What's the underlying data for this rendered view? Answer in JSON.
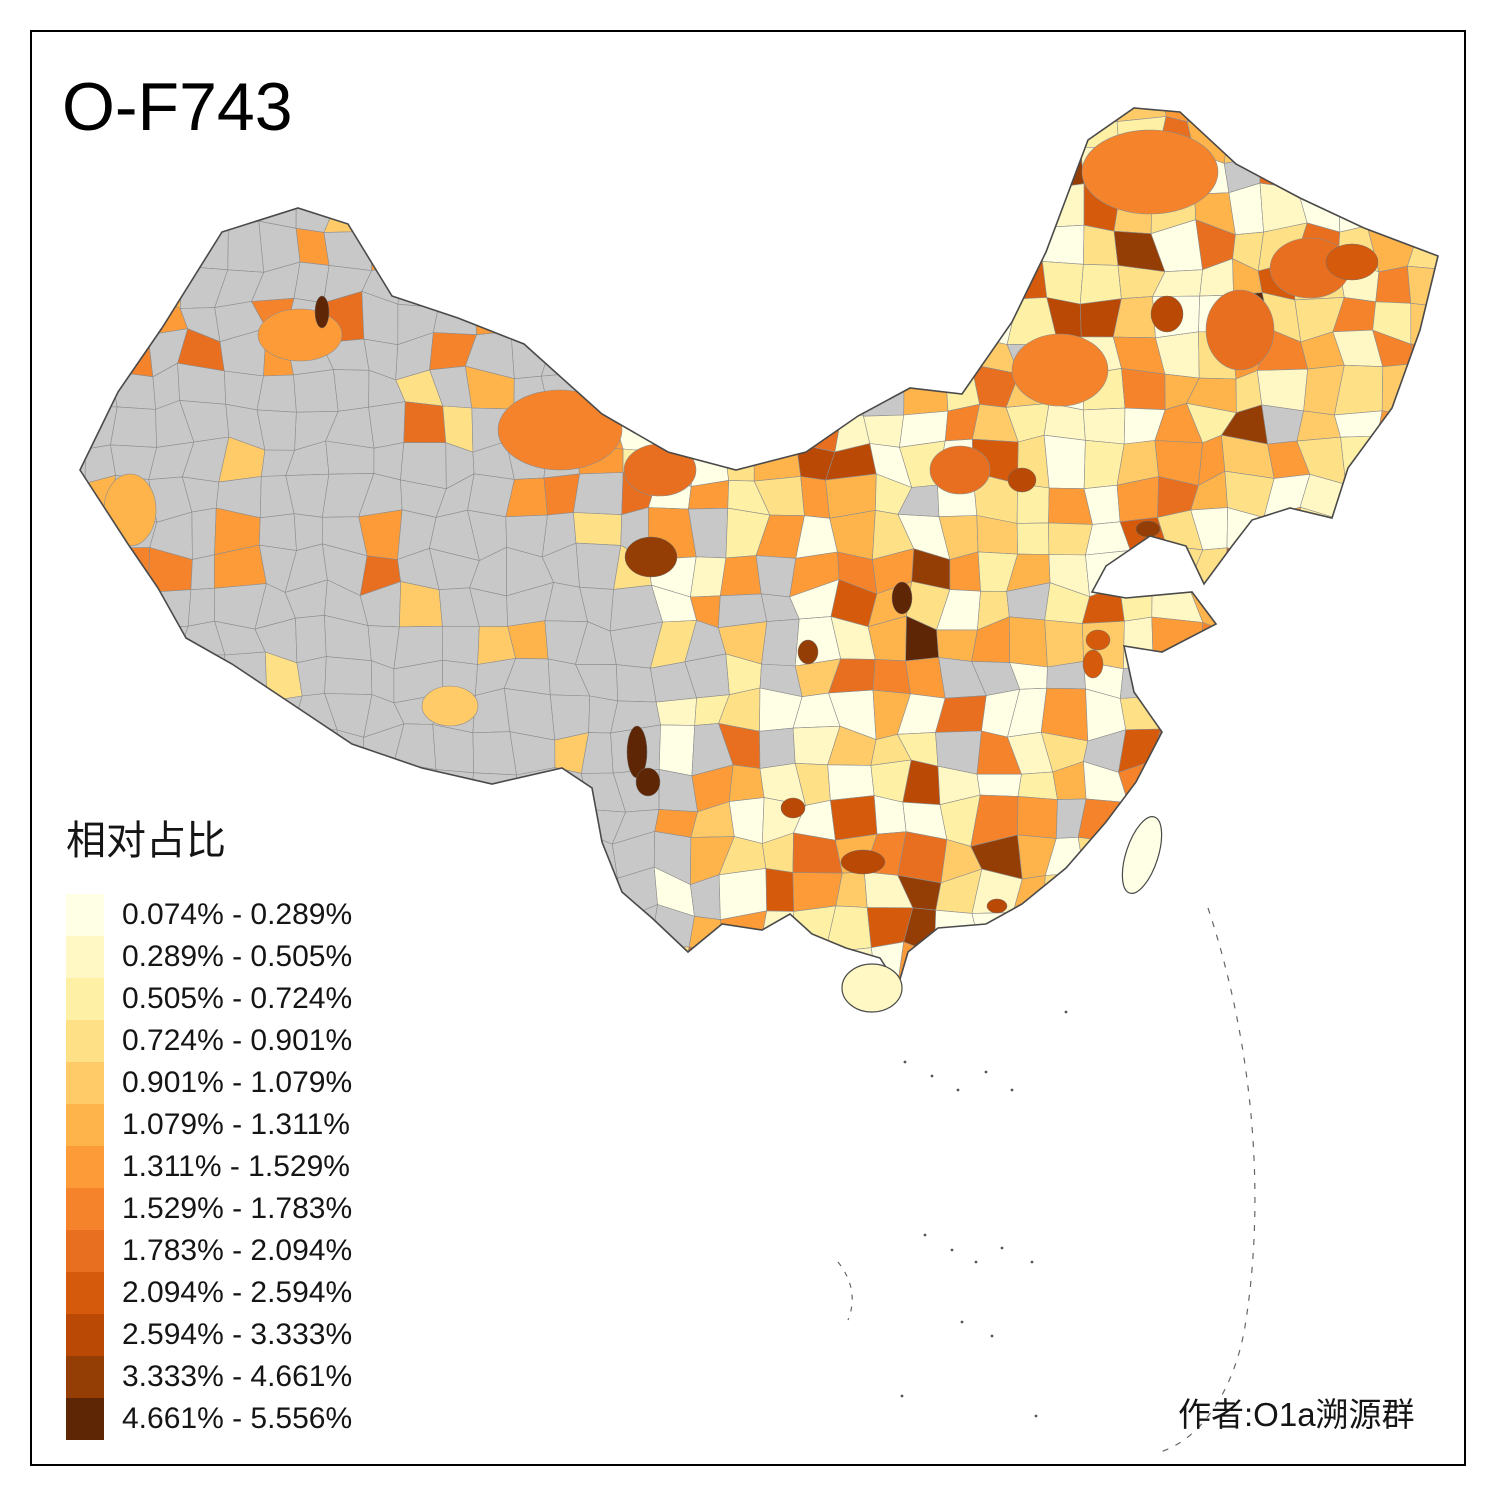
{
  "title": "O-F743",
  "legend": {
    "title": "相对占比",
    "classes": [
      {
        "label": "0.074% - 0.289%",
        "color": "#FFFFE5"
      },
      {
        "label": "0.289% - 0.505%",
        "color": "#FFF8C4"
      },
      {
        "label": "0.505% - 0.724%",
        "color": "#FEF0A4"
      },
      {
        "label": "0.724% - 0.901%",
        "color": "#FEE087"
      },
      {
        "label": "0.901% - 1.079%",
        "color": "#FECB68"
      },
      {
        "label": "1.079% - 1.311%",
        "color": "#FEB44B"
      },
      {
        "label": "1.311% - 1.529%",
        "color": "#FD9B38"
      },
      {
        "label": "1.529% - 1.783%",
        "color": "#F5832B"
      },
      {
        "label": "1.783% - 2.094%",
        "color": "#E86F1F"
      },
      {
        "label": "2.094% - 2.594%",
        "color": "#D55A0C"
      },
      {
        "label": "2.594% - 3.333%",
        "color": "#B94905"
      },
      {
        "label": "3.333% - 4.661%",
        "color": "#943D04"
      },
      {
        "label": "4.661% - 5.556%",
        "color": "#5E2605"
      }
    ]
  },
  "attribution": "作者:O1a溯源群",
  "map": {
    "kind": "choropleth of China prefectures",
    "nodata_color": "#C8C8C8",
    "boundary_color": "#4A4A4A",
    "background": "#FFFFFF"
  },
  "chart_data": {
    "type": "heatmap",
    "title": "O-F743",
    "legend_title": "相对占比",
    "legend_position": "bottom-left",
    "value_breaks_percent": [
      0.074,
      0.289,
      0.505,
      0.724,
      0.901,
      1.079,
      1.311,
      1.529,
      1.783,
      2.094,
      2.594,
      3.333,
      4.661,
      5.556
    ],
    "palette": [
      "#FFFFE5",
      "#FFF8C4",
      "#FEF0A4",
      "#FEE087",
      "#FECB68",
      "#FEB44B",
      "#FD9B38",
      "#F5832B",
      "#E86F1F",
      "#D55A0C",
      "#B94905",
      "#943D04",
      "#5E2605"
    ],
    "nodata_color": "#C8C8C8"
  }
}
